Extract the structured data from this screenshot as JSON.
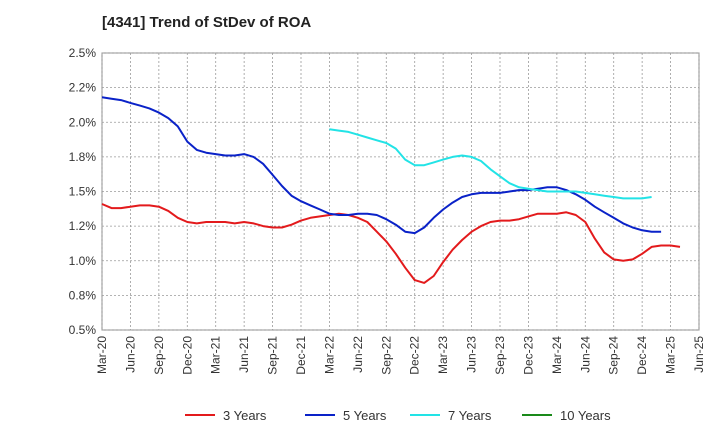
{
  "title": "[4341]  Trend of StDev of ROA",
  "chart_data": {
    "type": "line",
    "title": "[4341]  Trend of StDev of ROA",
    "xlabel": "",
    "ylabel": "",
    "ylim": [
      0.5,
      2.5
    ],
    "xlim": [
      "Mar-20",
      "Jun-25"
    ],
    "grid": true,
    "legend_position": "bottom",
    "x_ticks": [
      "Mar-20",
      "Jun-20",
      "Sep-20",
      "Dec-20",
      "Mar-21",
      "Jun-21",
      "Sep-21",
      "Dec-21",
      "Mar-22",
      "Jun-22",
      "Sep-22",
      "Dec-22",
      "Mar-23",
      "Jun-23",
      "Sep-23",
      "Dec-23",
      "Mar-24",
      "Jun-24",
      "Sep-24",
      "Dec-24",
      "Mar-25",
      "Jun-25"
    ],
    "y_ticks": [
      "0.5%",
      "0.8%",
      "1.0%",
      "1.2%",
      "1.5%",
      "1.8%",
      "2.0%",
      "2.2%",
      "2.5%"
    ],
    "y_tick_values": [
      0.5,
      0.75,
      1.0,
      1.25,
      1.5,
      1.75,
      2.0,
      2.25,
      2.5
    ],
    "series": [
      {
        "name": "3 Years",
        "color": "#e31a1c",
        "start": "Mar-20",
        "values": [
          1.41,
          1.38,
          1.38,
          1.39,
          1.4,
          1.4,
          1.39,
          1.36,
          1.31,
          1.28,
          1.27,
          1.28,
          1.28,
          1.28,
          1.27,
          1.28,
          1.27,
          1.25,
          1.24,
          1.24,
          1.26,
          1.29,
          1.31,
          1.32,
          1.33,
          1.34,
          1.33,
          1.31,
          1.28,
          1.21,
          1.14,
          1.05,
          0.95,
          0.86,
          0.84,
          0.89,
          0.99,
          1.08,
          1.15,
          1.21,
          1.25,
          1.28,
          1.29,
          1.29,
          1.3,
          1.32,
          1.34,
          1.34,
          1.34,
          1.35,
          1.33,
          1.28,
          1.16,
          1.06,
          1.01,
          1.0,
          1.01,
          1.05,
          1.1,
          1.11,
          1.11,
          1.1
        ]
      },
      {
        "name": "5 Years",
        "color": "#0a22c8",
        "start": "Mar-20",
        "values": [
          2.18,
          2.17,
          2.16,
          2.14,
          2.12,
          2.1,
          2.07,
          2.03,
          1.97,
          1.86,
          1.8,
          1.78,
          1.77,
          1.76,
          1.76,
          1.77,
          1.75,
          1.7,
          1.62,
          1.54,
          1.47,
          1.43,
          1.4,
          1.37,
          1.34,
          1.33,
          1.33,
          1.34,
          1.34,
          1.33,
          1.3,
          1.26,
          1.21,
          1.2,
          1.24,
          1.31,
          1.37,
          1.42,
          1.46,
          1.48,
          1.49,
          1.49,
          1.49,
          1.5,
          1.51,
          1.51,
          1.52,
          1.53,
          1.53,
          1.51,
          1.48,
          1.44,
          1.39,
          1.35,
          1.31,
          1.27,
          1.24,
          1.22,
          1.21,
          1.21
        ]
      },
      {
        "name": "7 Years",
        "color": "#22e3e6",
        "start": "Mar-22",
        "values": [
          1.95,
          1.94,
          1.93,
          1.91,
          1.89,
          1.87,
          1.85,
          1.81,
          1.73,
          1.69,
          1.69,
          1.71,
          1.73,
          1.75,
          1.76,
          1.75,
          1.72,
          1.66,
          1.61,
          1.56,
          1.53,
          1.52,
          1.51,
          1.5,
          1.5,
          1.5,
          1.5,
          1.49,
          1.48,
          1.47,
          1.46,
          1.45,
          1.45,
          1.45,
          1.46
        ]
      },
      {
        "name": "10 Years",
        "color": "#1a8a1a",
        "start": "Mar-20",
        "values": []
      }
    ]
  }
}
